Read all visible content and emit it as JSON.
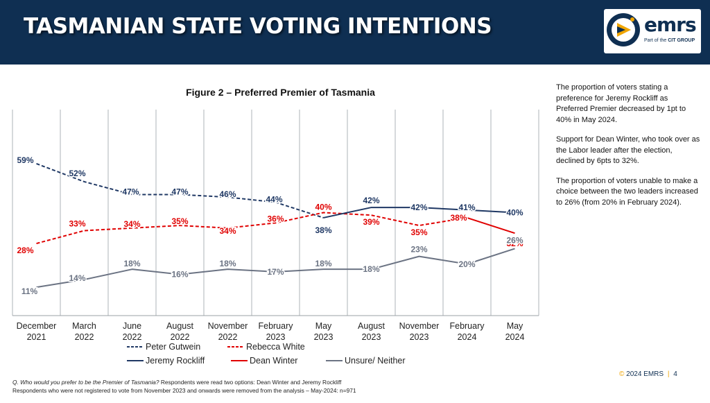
{
  "header": {
    "title": "TASMANIAN STATE VOTING INTENTIONS",
    "logo_name": "emrs",
    "logo_sub_prefix": "Part of the",
    "logo_sub_brand": "CIT GROUP"
  },
  "chart_data": {
    "type": "line",
    "title": "Figure 2 – Preferred Premier of Tasmania",
    "categories": [
      [
        "December",
        "2021"
      ],
      [
        "March",
        "2022"
      ],
      [
        "June",
        "2022"
      ],
      [
        "August",
        "2022"
      ],
      [
        "November",
        "2022"
      ],
      [
        "February",
        "2023"
      ],
      [
        "May",
        "2023"
      ],
      [
        "August",
        "2023"
      ],
      [
        "November",
        "2023"
      ],
      [
        "February",
        "2024"
      ],
      [
        "May",
        "2024"
      ]
    ],
    "ylim": [
      0,
      80
    ],
    "grid": "vertical",
    "legend": "bottom",
    "series": [
      {
        "name": "Peter Gutwein",
        "color": "#1f3864",
        "dashed": true,
        "values": [
          59,
          52,
          47,
          47,
          46,
          44,
          38,
          null,
          null,
          null,
          null
        ]
      },
      {
        "name": "Rebecca White",
        "color": "#e00000",
        "dashed": true,
        "values": [
          28,
          33,
          34,
          35,
          34,
          36,
          40,
          39,
          35,
          38,
          null
        ]
      },
      {
        "name": "Jeremy Rockliff",
        "color": "#1f3864",
        "dashed": false,
        "values": [
          null,
          null,
          null,
          null,
          null,
          null,
          38,
          42,
          42,
          41,
          40
        ]
      },
      {
        "name": "Dean Winter",
        "color": "#e00000",
        "dashed": false,
        "values": [
          null,
          null,
          null,
          null,
          null,
          null,
          null,
          null,
          null,
          38,
          32
        ]
      },
      {
        "name": "Unsure/ Neither",
        "color": "#6b7383",
        "dashed": false,
        "values": [
          11,
          14,
          18,
          16,
          18,
          17,
          18,
          18,
          23,
          20,
          26
        ]
      }
    ],
    "data_labels": [
      {
        "series": 0,
        "values": [
          59,
          52,
          47,
          47,
          46,
          44,
          null,
          null,
          null,
          null,
          null
        ]
      },
      {
        "series": 1,
        "values": [
          28,
          33,
          34,
          35,
          34,
          36,
          40,
          39,
          35,
          38,
          null
        ]
      },
      {
        "series": 2,
        "values": [
          null,
          null,
          null,
          null,
          null,
          null,
          38,
          42,
          42,
          41,
          40
        ]
      },
      {
        "series": 3,
        "values": [
          null,
          null,
          null,
          null,
          null,
          null,
          null,
          null,
          null,
          null,
          32
        ]
      },
      {
        "series": 4,
        "values": [
          11,
          14,
          18,
          16,
          18,
          17,
          18,
          18,
          23,
          20,
          26
        ]
      }
    ],
    "legend_rows": [
      [
        0,
        1
      ],
      [
        2,
        3,
        4
      ]
    ]
  },
  "commentary": [
    "The proportion of voters stating a preference for Jeremy Rockliff as Preferred Premier decreased by 1pt to 40% in May 2024.",
    "Support for Dean Winter, who took over as the Labor leader after the election, declined by 6pts to 32%.",
    "The proportion of voters unable to make a choice between the two leaders increased to 26% (from 20% in February 2024)."
  ],
  "note": {
    "question": "Q. Who would you prefer to be the Premier of Tasmania?",
    "line1_rest": " Respondents were read two options: Dean Winter and Jeremy Rockliff",
    "line2": "Respondents who were not registered to vote from November 2023 and onwards were removed from the analysis – May-2024: n=971"
  },
  "footer": {
    "copyright": "©",
    "text": "2024 EMRS",
    "page": "4"
  }
}
